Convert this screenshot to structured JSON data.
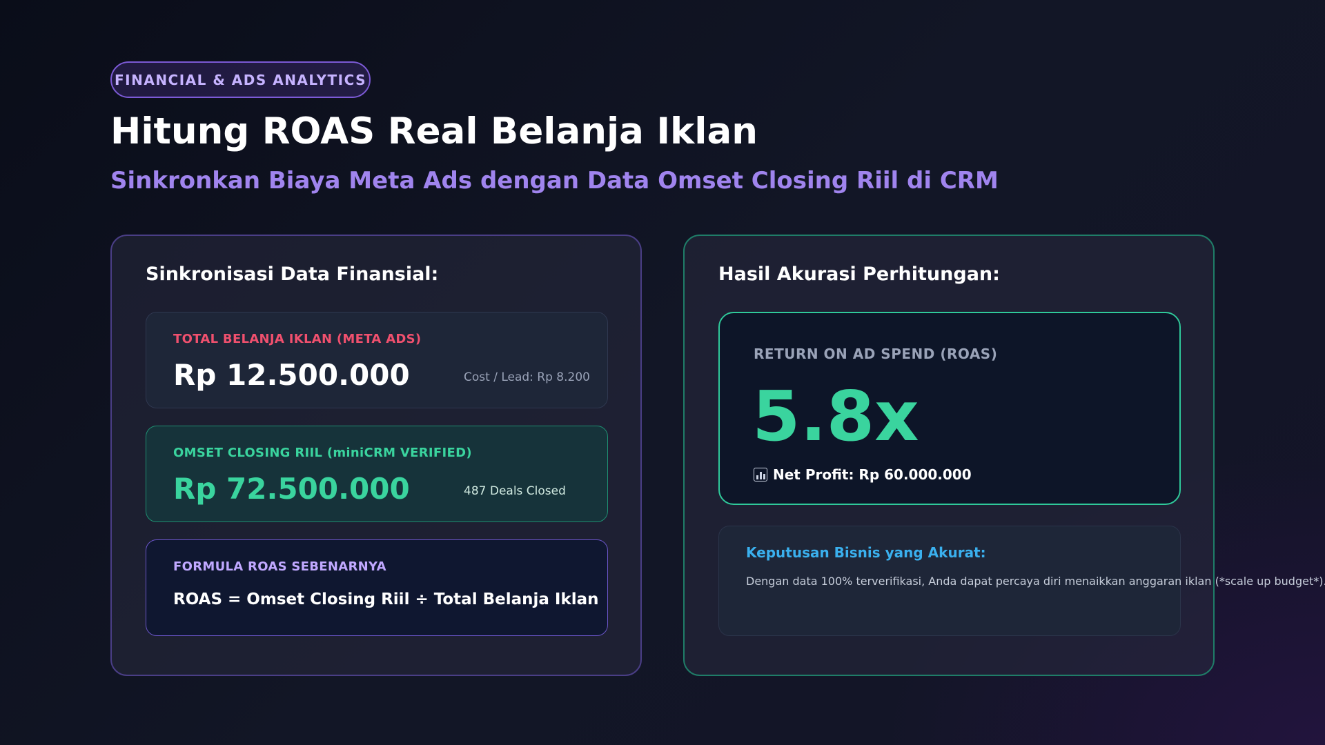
{
  "header": {
    "badge": "FINANCIAL & ADS ANALYTICS",
    "title": "Hitung ROAS Real Belanja Iklan",
    "subtitle": "Sinkronkan Biaya Meta Ads dengan Data Omset Closing Riil di CRM"
  },
  "left_panel": {
    "heading": "Sinkronisasi Data Finansial:",
    "spend_card": {
      "label": "TOTAL BELANJA IKLAN (META ADS)",
      "value": "Rp 12.500.000",
      "note": "Cost / Lead: Rp 8.200"
    },
    "revenue_card": {
      "label": "OMSET CLOSING RIIL (miniCRM VERIFIED)",
      "value": "Rp 72.500.000",
      "note": "487 Deals Closed"
    },
    "formula_card": {
      "label": "FORMULA ROAS SEBENARNYA",
      "formula": "ROAS = Omset Closing Riil ÷ Total Belanja Iklan"
    }
  },
  "right_panel": {
    "heading": "Hasil Akurasi Perhitungan:",
    "roas_card": {
      "label": "RETURN ON AD SPEND (ROAS)",
      "value": "5.8x",
      "icon": "bar-chart-icon",
      "profit": "Net Profit: Rp 60.000.000"
    },
    "decision_card": {
      "title": "Keputusan Bisnis yang Akurat:",
      "text": "Dengan data 100% terverifikasi, Anda dapat percaya diri menaikkan anggaran iklan (*scale up budget*)."
    }
  },
  "colors": {
    "accent_purple": "#a084ee",
    "accent_green": "#3ad49e",
    "accent_red": "#f0506e",
    "accent_blue": "#3ab0ee"
  }
}
